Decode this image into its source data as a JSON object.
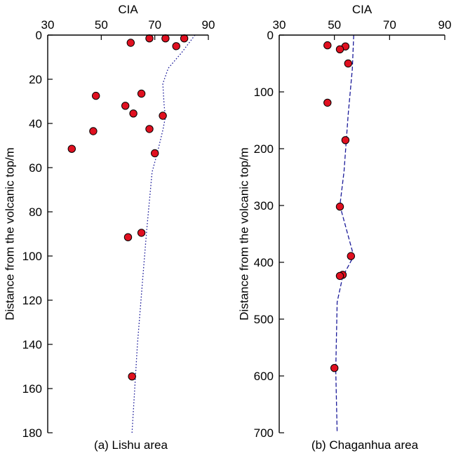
{
  "chart_data": [
    {
      "type": "scatter",
      "id": "lishu",
      "caption": "(a) Lishu area",
      "xlabel": "CIA",
      "ylabel": "Distance from the volcanic top/m",
      "xlim": [
        30,
        90
      ],
      "ylim": [
        0,
        180
      ],
      "y_inverted": true,
      "x_axis_position": "top",
      "xticks": [
        30,
        50,
        70,
        90
      ],
      "yticks": [
        0,
        20,
        40,
        60,
        80,
        100,
        120,
        140,
        160,
        180
      ],
      "grid": false,
      "points": [
        {
          "x": 61,
          "y": 3.5
        },
        {
          "x": 68,
          "y": 1.5
        },
        {
          "x": 74,
          "y": 1.5
        },
        {
          "x": 81,
          "y": 1.5
        },
        {
          "x": 78,
          "y": 5
        },
        {
          "x": 48,
          "y": 27.5
        },
        {
          "x": 65,
          "y": 26.5
        },
        {
          "x": 59,
          "y": 32
        },
        {
          "x": 62,
          "y": 35.5
        },
        {
          "x": 73,
          "y": 36.5
        },
        {
          "x": 68,
          "y": 42.5
        },
        {
          "x": 47,
          "y": 43.5
        },
        {
          "x": 39,
          "y": 51.5
        },
        {
          "x": 70,
          "y": 53.5
        },
        {
          "x": 65,
          "y": 89.5
        },
        {
          "x": 60,
          "y": 91.5
        },
        {
          "x": 61.5,
          "y": 154.5
        }
      ],
      "trend_style": "dotted",
      "trend": [
        {
          "x": 85,
          "y": 0
        },
        {
          "x": 80,
          "y": 8
        },
        {
          "x": 75,
          "y": 15
        },
        {
          "x": 73,
          "y": 22
        },
        {
          "x": 73.5,
          "y": 32
        },
        {
          "x": 74,
          "y": 37
        },
        {
          "x": 73,
          "y": 43
        },
        {
          "x": 71,
          "y": 53
        },
        {
          "x": 69,
          "y": 62
        },
        {
          "x": 67,
          "y": 88
        },
        {
          "x": 65.5,
          "y": 110
        },
        {
          "x": 63.5,
          "y": 140
        },
        {
          "x": 61.5,
          "y": 180
        }
      ],
      "marker_color": "#e01020",
      "trend_color": "#1a1a99"
    },
    {
      "type": "scatter",
      "id": "chaganhua",
      "caption": "(b) Chaganhua area",
      "xlabel": "CIA",
      "ylabel": "Distance from the volcanic top/m",
      "xlim": [
        30,
        90
      ],
      "ylim": [
        0,
        700
      ],
      "y_inverted": true,
      "x_axis_position": "top",
      "xticks": [
        30,
        50,
        70,
        90
      ],
      "yticks": [
        0,
        100,
        200,
        300,
        400,
        500,
        600,
        700
      ],
      "grid": false,
      "points": [
        {
          "x": 47.5,
          "y": 18
        },
        {
          "x": 54,
          "y": 20
        },
        {
          "x": 52,
          "y": 25
        },
        {
          "x": 55,
          "y": 50
        },
        {
          "x": 47.5,
          "y": 119
        },
        {
          "x": 54,
          "y": 185
        },
        {
          "x": 52,
          "y": 302
        },
        {
          "x": 56,
          "y": 389
        },
        {
          "x": 53,
          "y": 422
        },
        {
          "x": 52,
          "y": 424
        },
        {
          "x": 50,
          "y": 586
        }
      ],
      "trend_style": "dashed",
      "trend": [
        {
          "x": 57,
          "y": 0
        },
        {
          "x": 56.5,
          "y": 60
        },
        {
          "x": 55,
          "y": 140
        },
        {
          "x": 53.5,
          "y": 240
        },
        {
          "x": 52,
          "y": 300
        },
        {
          "x": 57,
          "y": 389
        },
        {
          "x": 53,
          "y": 425
        },
        {
          "x": 51,
          "y": 470
        },
        {
          "x": 50.5,
          "y": 590
        },
        {
          "x": 51,
          "y": 700
        }
      ],
      "marker_color": "#e01020",
      "trend_color": "#1a1a99"
    }
  ]
}
